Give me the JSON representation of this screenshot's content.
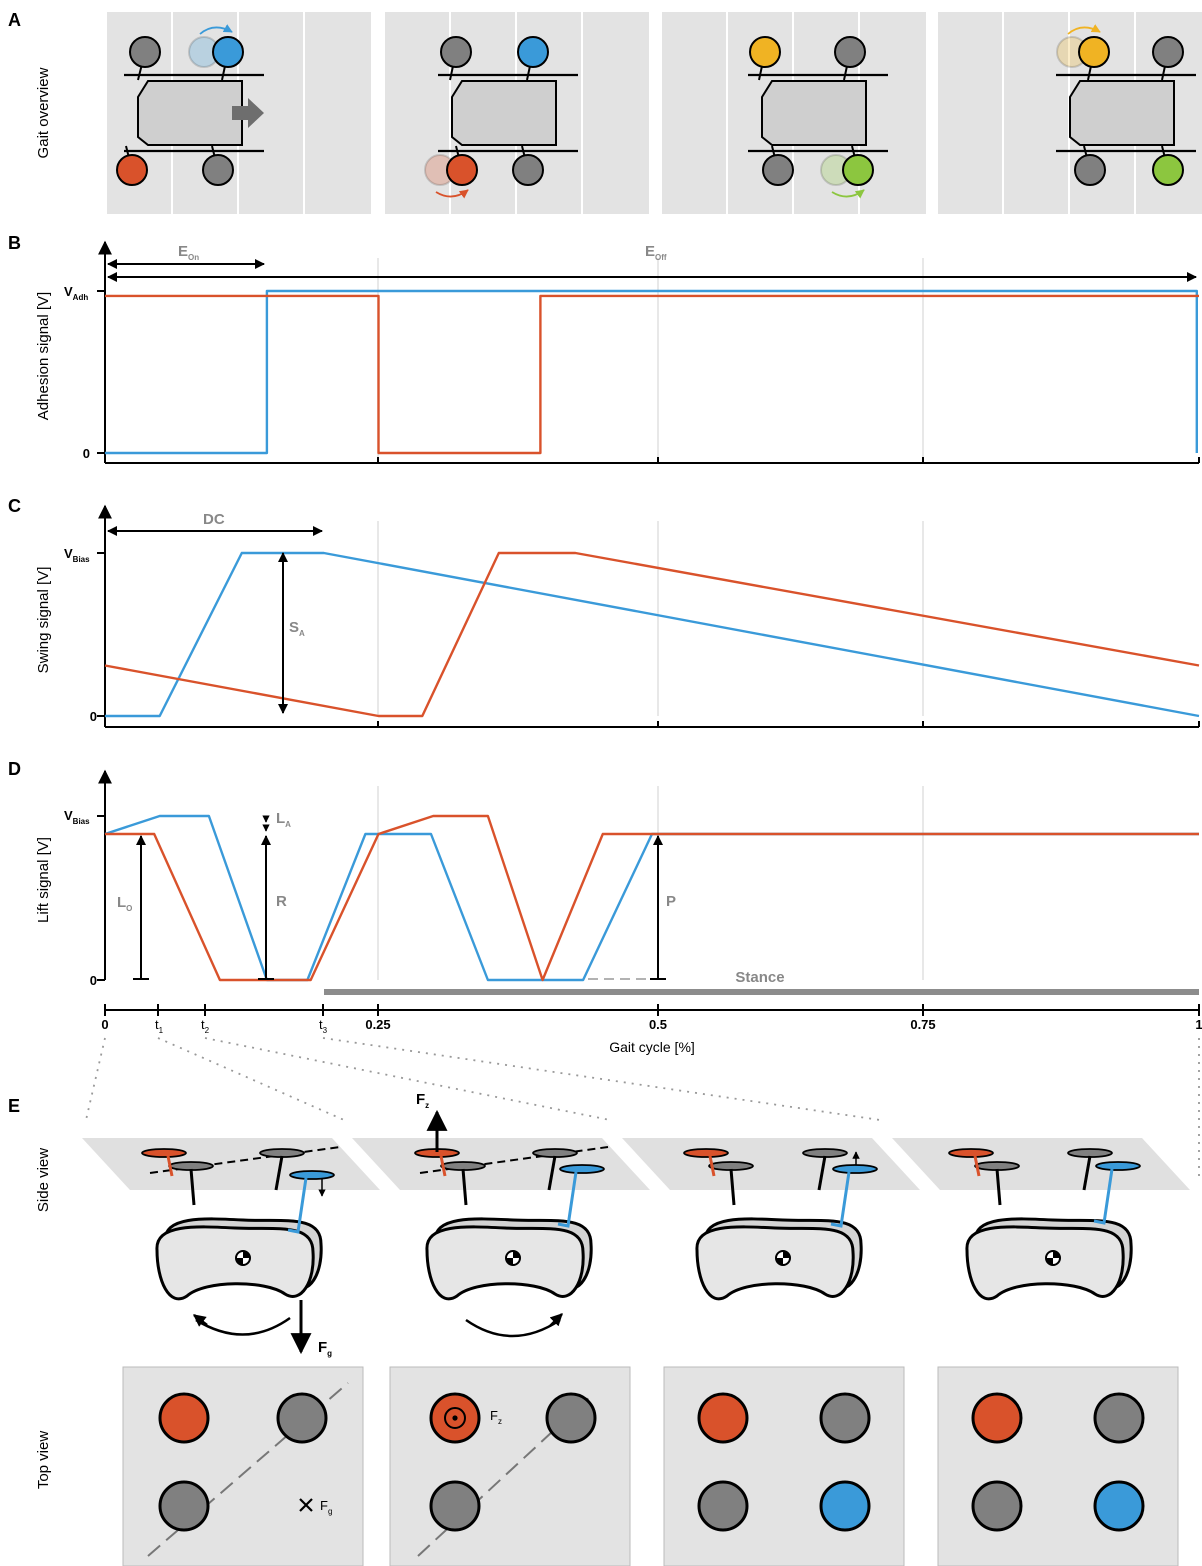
{
  "panels": {
    "a": "A",
    "b": "B",
    "c": "C",
    "d": "D",
    "e": "E",
    "gait_overview": "Gait overview",
    "side_view": "Side view",
    "top_view": "Top view"
  },
  "axes": {
    "adhesion_ylabel": "Adhesion signal [V]",
    "swing_ylabel": "Swing signal [V]",
    "lift_ylabel": "Lift signal [V]",
    "xlabel": "Gait cycle [%]",
    "v_adh": "V",
    "v_adh_sub": "Adh",
    "v_bias": "V",
    "v_bias_sub": "Bias",
    "zero": "0",
    "x_ticks": [
      "0",
      "0.25",
      "0.5",
      "0.75",
      "1"
    ],
    "t_ticks": [
      "t",
      "t",
      "t"
    ],
    "t_subs": [
      "1",
      "2",
      "3"
    ]
  },
  "annotations": {
    "e_on": "E",
    "e_on_sub": "On",
    "e_off": "E",
    "e_off_sub": "Off",
    "dc": "DC",
    "s_a": "S",
    "s_a_sub": "A",
    "l_a": "L",
    "l_a_sub": "A",
    "l_o": "L",
    "l_o_sub": "O",
    "r": "R",
    "p": "P",
    "stance": "Stance",
    "f_z": "F",
    "f_z_sub": "z",
    "f_g": "F",
    "f_g_sub": "g"
  },
  "colors": {
    "blue": "#3a9ad9",
    "orange": "#d9522b",
    "gray": "#808080",
    "yellow": "#f0b323",
    "green": "#8cc63f",
    "panel_bg": "#e3e3e3",
    "stance_bar": "#8c8c8c"
  },
  "chart_data": [
    {
      "type": "line",
      "ylabel": "Adhesion signal [V]",
      "xlabel": "Gait cycle [%]",
      "xlim": [
        0,
        1
      ],
      "series": [
        {
          "x": [
            0,
            0.148,
            0.148,
            0.998,
            0.998
          ],
          "y": [
            0,
            0,
            1,
            1,
            0
          ]
        },
        {
          "x": [
            0,
            0.25,
            0.25,
            0.398,
            0.398,
            1
          ],
          "y": [
            0.97,
            0.97,
            0,
            0,
            0.97,
            0.97
          ]
        }
      ]
    },
    {
      "type": "line",
      "ylabel": "Swing signal [V]",
      "xlabel": "Gait cycle [%]",
      "xlim": [
        0,
        1
      ],
      "series": [
        {
          "x": [
            0,
            0.05,
            0.125,
            0.2,
            1
          ],
          "y": [
            0,
            0,
            1,
            1,
            0
          ]
        },
        {
          "x": [
            0,
            0.25,
            0.29,
            0.36,
            0.43,
            1
          ],
          "y": [
            0.31,
            0,
            0,
            1,
            1,
            0.31
          ]
        }
      ]
    },
    {
      "type": "line",
      "ylabel": "Lift signal [V]",
      "xlabel": "Gait cycle [%]",
      "xlim": [
        0,
        1
      ],
      "series": [
        {
          "x": [
            0,
            0.05,
            0.095,
            0.148,
            0.185,
            0.238,
            0.298,
            0.35,
            0.437,
            0.5,
            1
          ],
          "y": [
            0.89,
            1,
            1,
            0,
            0,
            0.89,
            0.89,
            0,
            0,
            0.89,
            0.89
          ]
        },
        {
          "x": [
            0,
            0.045,
            0.105,
            0.188,
            0.25,
            0.3,
            0.35,
            0.4,
            0.455,
            1
          ],
          "y": [
            0.89,
            0.89,
            0,
            0,
            0.89,
            1,
            1,
            0,
            0.89,
            0.89
          ]
        }
      ]
    }
  ]
}
